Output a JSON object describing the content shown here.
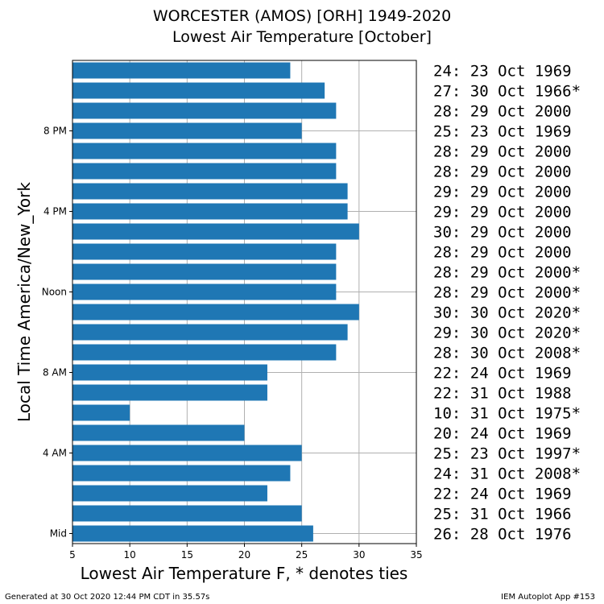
{
  "chart_data": {
    "type": "bar",
    "orientation": "horizontal",
    "title": "WORCESTER (AMOS) [ORH] 1949-2020",
    "subtitle": "Lowest Air Temperature [October]",
    "xlabel": "Lowest Air Temperature F, * denotes ties",
    "ylabel": "Local Time America/New_York",
    "xlim": [
      5,
      35
    ],
    "xticks": [
      5,
      10,
      15,
      20,
      25,
      30,
      35
    ],
    "yticks": [
      {
        "hour": 0,
        "label": "Mid"
      },
      {
        "hour": 4,
        "label": "4 AM"
      },
      {
        "hour": 8,
        "label": "8 AM"
      },
      {
        "hour": 12,
        "label": "Noon"
      },
      {
        "hour": 16,
        "label": "4 PM"
      },
      {
        "hour": 20,
        "label": "8 PM"
      }
    ],
    "grid": true,
    "bar_color": "#1f77b4",
    "hours": [
      0,
      1,
      2,
      3,
      4,
      5,
      6,
      7,
      8,
      9,
      10,
      11,
      12,
      13,
      14,
      15,
      16,
      17,
      18,
      19,
      20,
      21,
      22,
      23
    ],
    "values": [
      26,
      25,
      22,
      24,
      25,
      20,
      10,
      22,
      22,
      28,
      29,
      30,
      28,
      28,
      28,
      30,
      29,
      29,
      28,
      28,
      25,
      28,
      27,
      24
    ],
    "annotations": [
      "26: 28 Oct 1976",
      "25: 31 Oct 1966",
      "22: 24 Oct 1969",
      "24: 31 Oct 2008*",
      "25: 23 Oct 1997*",
      "20: 24 Oct 1969",
      "10: 31 Oct 1975*",
      "22: 31 Oct 1988",
      "22: 24 Oct 1969",
      "28: 30 Oct 2008*",
      "29: 30 Oct 2020*",
      "30: 30 Oct 2020*",
      "28: 29 Oct 2000*",
      "28: 29 Oct 2000*",
      "28: 29 Oct 2000",
      "30: 29 Oct 2000",
      "29: 29 Oct 2000",
      "29: 29 Oct 2000",
      "28: 29 Oct 2000",
      "28: 29 Oct 2000",
      "25: 23 Oct 1969",
      "28: 29 Oct 2000",
      "27: 30 Oct 1966*",
      "24: 23 Oct 1969"
    ]
  },
  "footer": {
    "left": "Generated at 30 Oct 2020 12:44 PM CDT in 35.57s",
    "right": "IEM Autoplot App #153"
  }
}
